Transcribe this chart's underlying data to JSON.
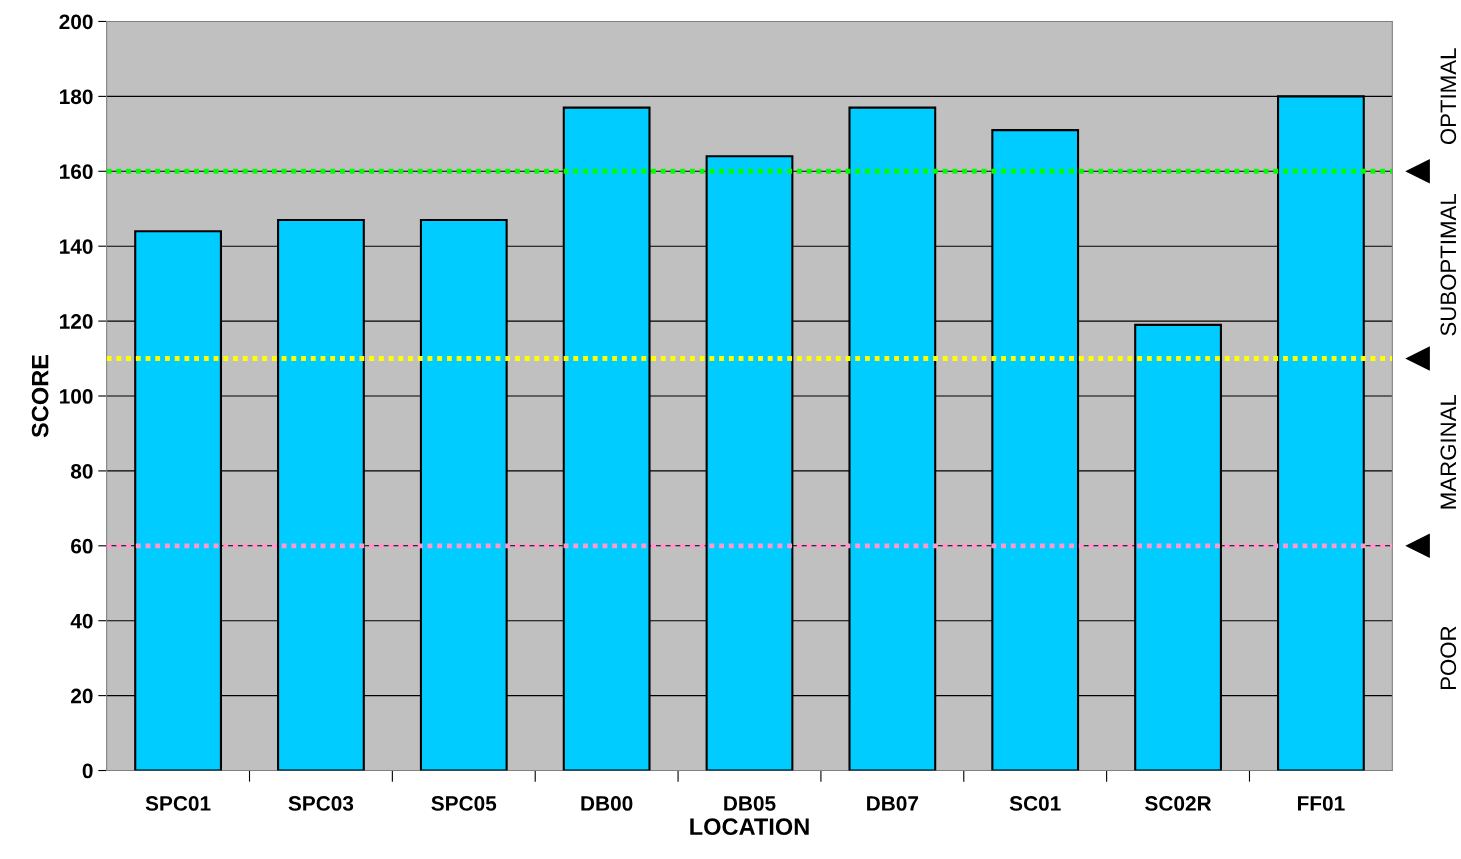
{
  "chart_data": {
    "type": "bar",
    "xlabel": "LOCATION",
    "ylabel": "SCORE",
    "categories": [
      "SPC01",
      "SPC03",
      "SPC05",
      "DB00",
      "DB05",
      "DB07",
      "SC01",
      "SC02R",
      "FF01"
    ],
    "values": [
      144,
      147,
      147,
      177,
      164,
      177,
      171,
      119,
      180
    ],
    "color": "#00ccff",
    "ylim": [
      0,
      200
    ],
    "yticks": [
      0,
      20,
      40,
      60,
      80,
      100,
      120,
      140,
      160,
      180,
      200
    ],
    "grid": "y",
    "ref_lines": [
      {
        "axis": "y",
        "value": 160,
        "color": "#00ff00",
        "line_style": "dotted"
      },
      {
        "axis": "y",
        "value": 110,
        "color": "#ffff00",
        "line_style": "dotted"
      },
      {
        "axis": "y",
        "value": 60,
        "color": "#ff99cc",
        "line_style": "dotted"
      }
    ],
    "annotations": [
      "OPTIMAL",
      "SUBOPTIMAL",
      "MARGINAL",
      "POOR"
    ]
  }
}
